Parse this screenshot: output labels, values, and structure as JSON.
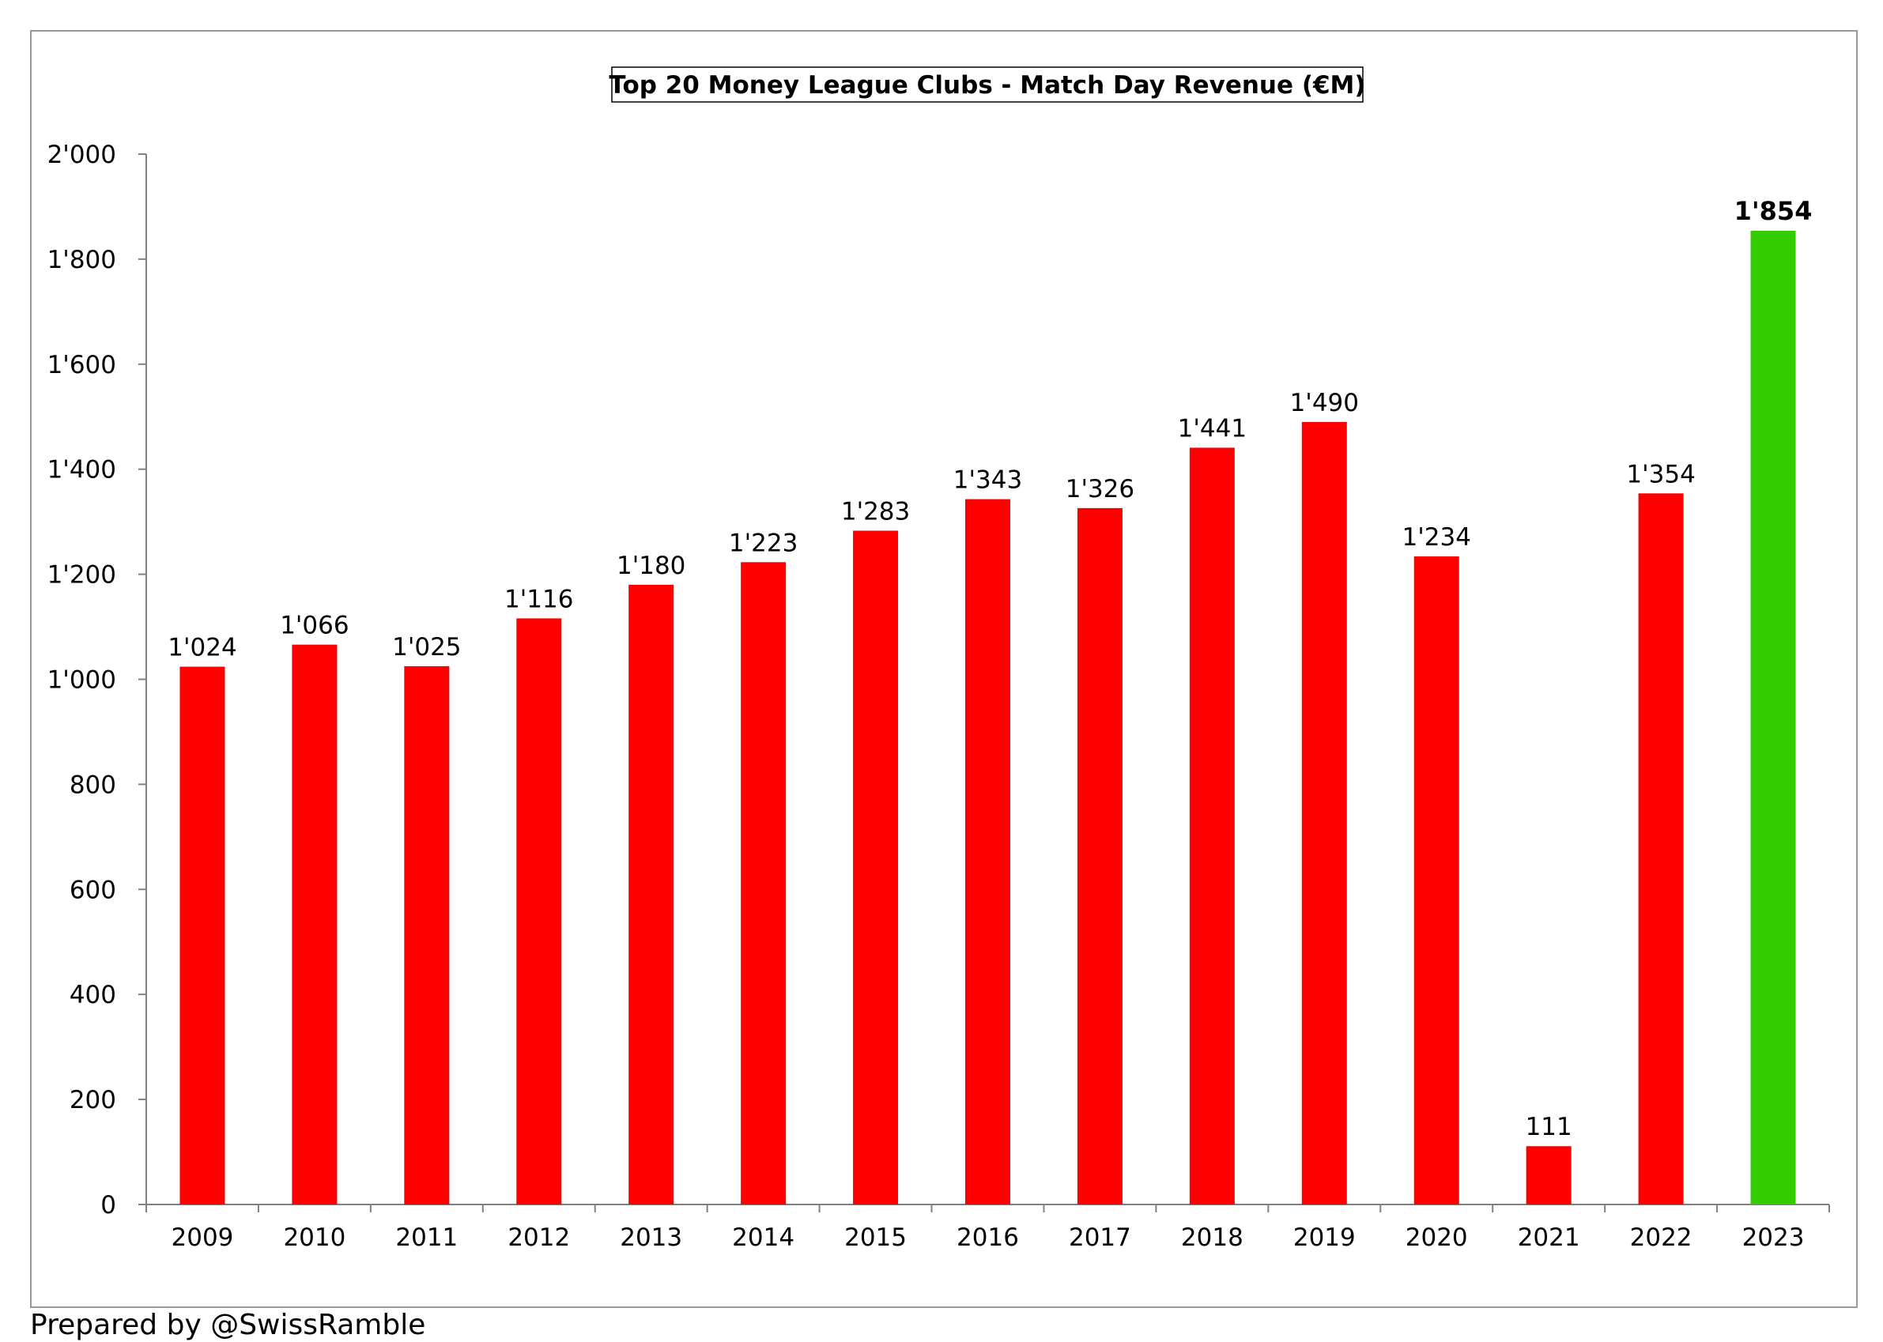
{
  "footer": {
    "text": "Prepared by @SwissRamble"
  },
  "colors": {
    "bar": "#ff0000",
    "highlight": "#33cc00",
    "axis": "#808080",
    "frame": "#9a9a9a"
  },
  "chart_data": {
    "type": "bar",
    "title": "Top 20 Money League Clubs - Match Day Revenue (€M)",
    "xlabel": "",
    "ylabel": "",
    "ylim": [
      0,
      2000
    ],
    "yticks": [
      "0",
      "200",
      "400",
      "600",
      "800",
      "1'000",
      "1'200",
      "1'400",
      "1'600",
      "1'800",
      "2'000"
    ],
    "ytick_values": [
      0,
      200,
      400,
      600,
      800,
      1000,
      1200,
      1400,
      1600,
      1800,
      2000
    ],
    "grid": false,
    "legend": "none",
    "categories": [
      "2009",
      "2010",
      "2011",
      "2012",
      "2013",
      "2014",
      "2015",
      "2016",
      "2017",
      "2018",
      "2019",
      "2020",
      "2021",
      "2022",
      "2023"
    ],
    "values": [
      1024,
      1066,
      1025,
      1116,
      1180,
      1223,
      1283,
      1343,
      1326,
      1441,
      1490,
      1234,
      111,
      1354,
      1854
    ],
    "labels": [
      "1'024",
      "1'066",
      "1'025",
      "1'116",
      "1'180",
      "1'223",
      "1'283",
      "1'343",
      "1'326",
      "1'441",
      "1'490",
      "1'234",
      "111",
      "1'354",
      "1'854"
    ],
    "highlight_index": 14
  }
}
